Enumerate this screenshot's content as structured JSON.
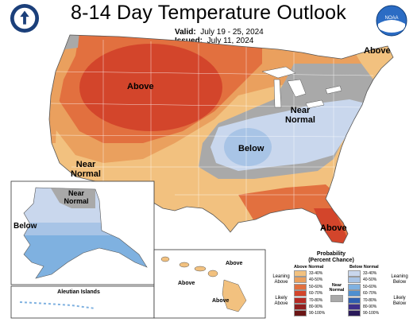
{
  "title": "8-14 Day Temperature Outlook",
  "valid_label": "Valid:",
  "valid_dates": "July 19 - 25, 2024",
  "issued_label": "Issued:",
  "issued_date": "July 11, 2024",
  "map_labels": {
    "above_north": "Above",
    "above_northeast": "Above",
    "near_normal_east_1": "Near",
    "near_normal_east_2": "Normal",
    "below_central": "Below",
    "near_normal_west_1": "Near",
    "near_normal_west_2": "Normal",
    "above_florida": "Above",
    "alaska_near_1": "Near",
    "alaska_near_2": "Normal",
    "alaska_below": "Below",
    "hawaii_above_1": "Above",
    "hawaii_above_2": "Above",
    "hawaii_above_3": "Above",
    "aleutian": "Aleutian Islands"
  },
  "legend": {
    "title_1": "Probability",
    "title_2": "(Percent Chance)",
    "above_head": "Above Normal",
    "below_head": "Below Normal",
    "leaning_above_1": "Leaning",
    "leaning_above_2": "Above",
    "likely_above_1": "Likely",
    "likely_above_2": "Above",
    "leaning_below_1": "Leaning",
    "leaning_below_2": "Below",
    "likely_below_1": "Likely",
    "likely_below_2": "Below",
    "near_1": "Near",
    "near_2": "Normal",
    "above_bins": [
      "33-40%",
      "40-50%",
      "50-60%",
      "60-70%",
      "70-80%",
      "80-90%",
      "90-100%"
    ],
    "below_bins": [
      "33-40%",
      "40-50%",
      "50-60%",
      "60-70%",
      "70-80%",
      "80-90%",
      "90-100%"
    ],
    "colors": {
      "above": [
        "#f2c17f",
        "#eaa05e",
        "#e2703f",
        "#d3452b",
        "#b52a24",
        "#8f1f1f",
        "#6a1515"
      ],
      "below": [
        "#c9d7ed",
        "#a8c4e6",
        "#7fb1e0",
        "#4e8fd0",
        "#2f5fb0",
        "#3d2f8a",
        "#2a1a5a"
      ],
      "near": "#a9a9a9"
    }
  }
}
